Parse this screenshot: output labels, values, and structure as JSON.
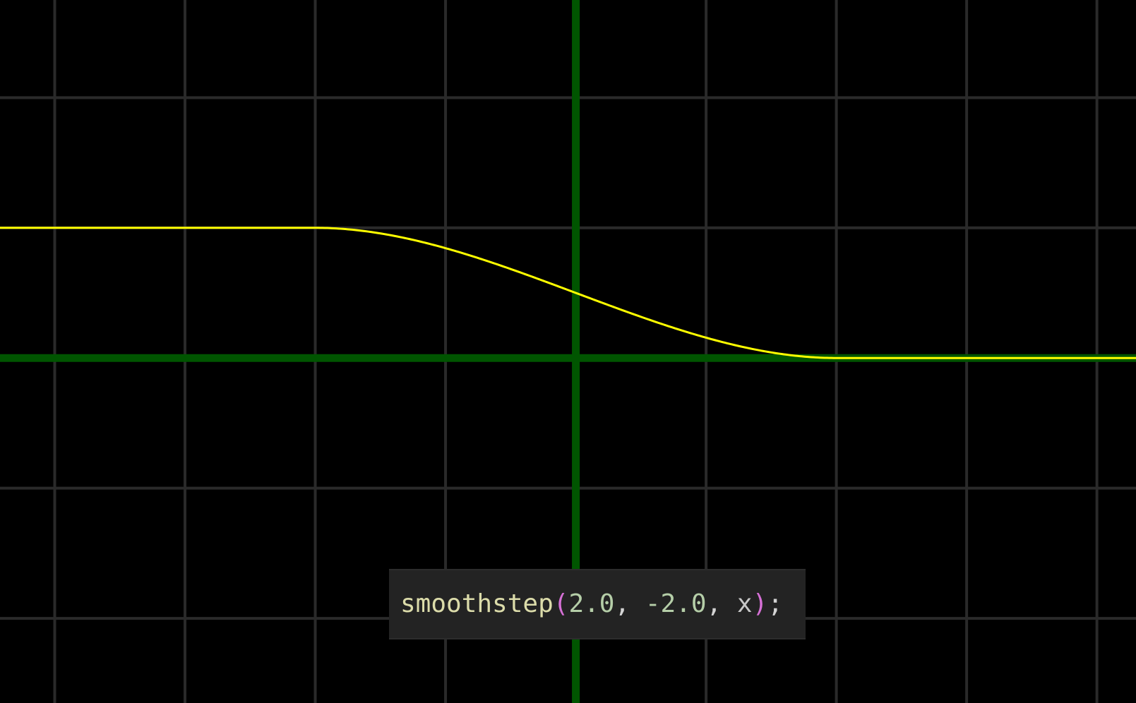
{
  "colors": {
    "background": "#000000",
    "grid": "#2a2a2a",
    "axis": "#005500",
    "curve": "#ffff00"
  },
  "code": {
    "function_name": "smoothstep",
    "open_paren": "(",
    "arg1": "2.0",
    "sep1": ", ",
    "arg2": "-2.0",
    "sep2": ", ",
    "arg3": "x",
    "close_paren": ")",
    "terminator": ";"
  },
  "chart_data": {
    "type": "line",
    "title": "",
    "xlabel": "",
    "ylabel": "",
    "xlim": [
      -4.42,
      4.3
    ],
    "ylim": [
      -2.65,
      2.75
    ],
    "grid": true,
    "grid_step": 1,
    "series": [
      {
        "function": "smoothstep",
        "edge0": 2.0,
        "edge1": -2.0,
        "x": [
          -4.42,
          -2.0,
          -1.5,
          -1.0,
          -0.5,
          0.0,
          0.5,
          1.0,
          1.5,
          2.0,
          4.3
        ],
        "y": [
          1.0,
          1.0,
          0.957,
          0.844,
          0.672,
          0.5,
          0.328,
          0.156,
          0.043,
          0.0,
          0.0
        ]
      }
    ]
  }
}
